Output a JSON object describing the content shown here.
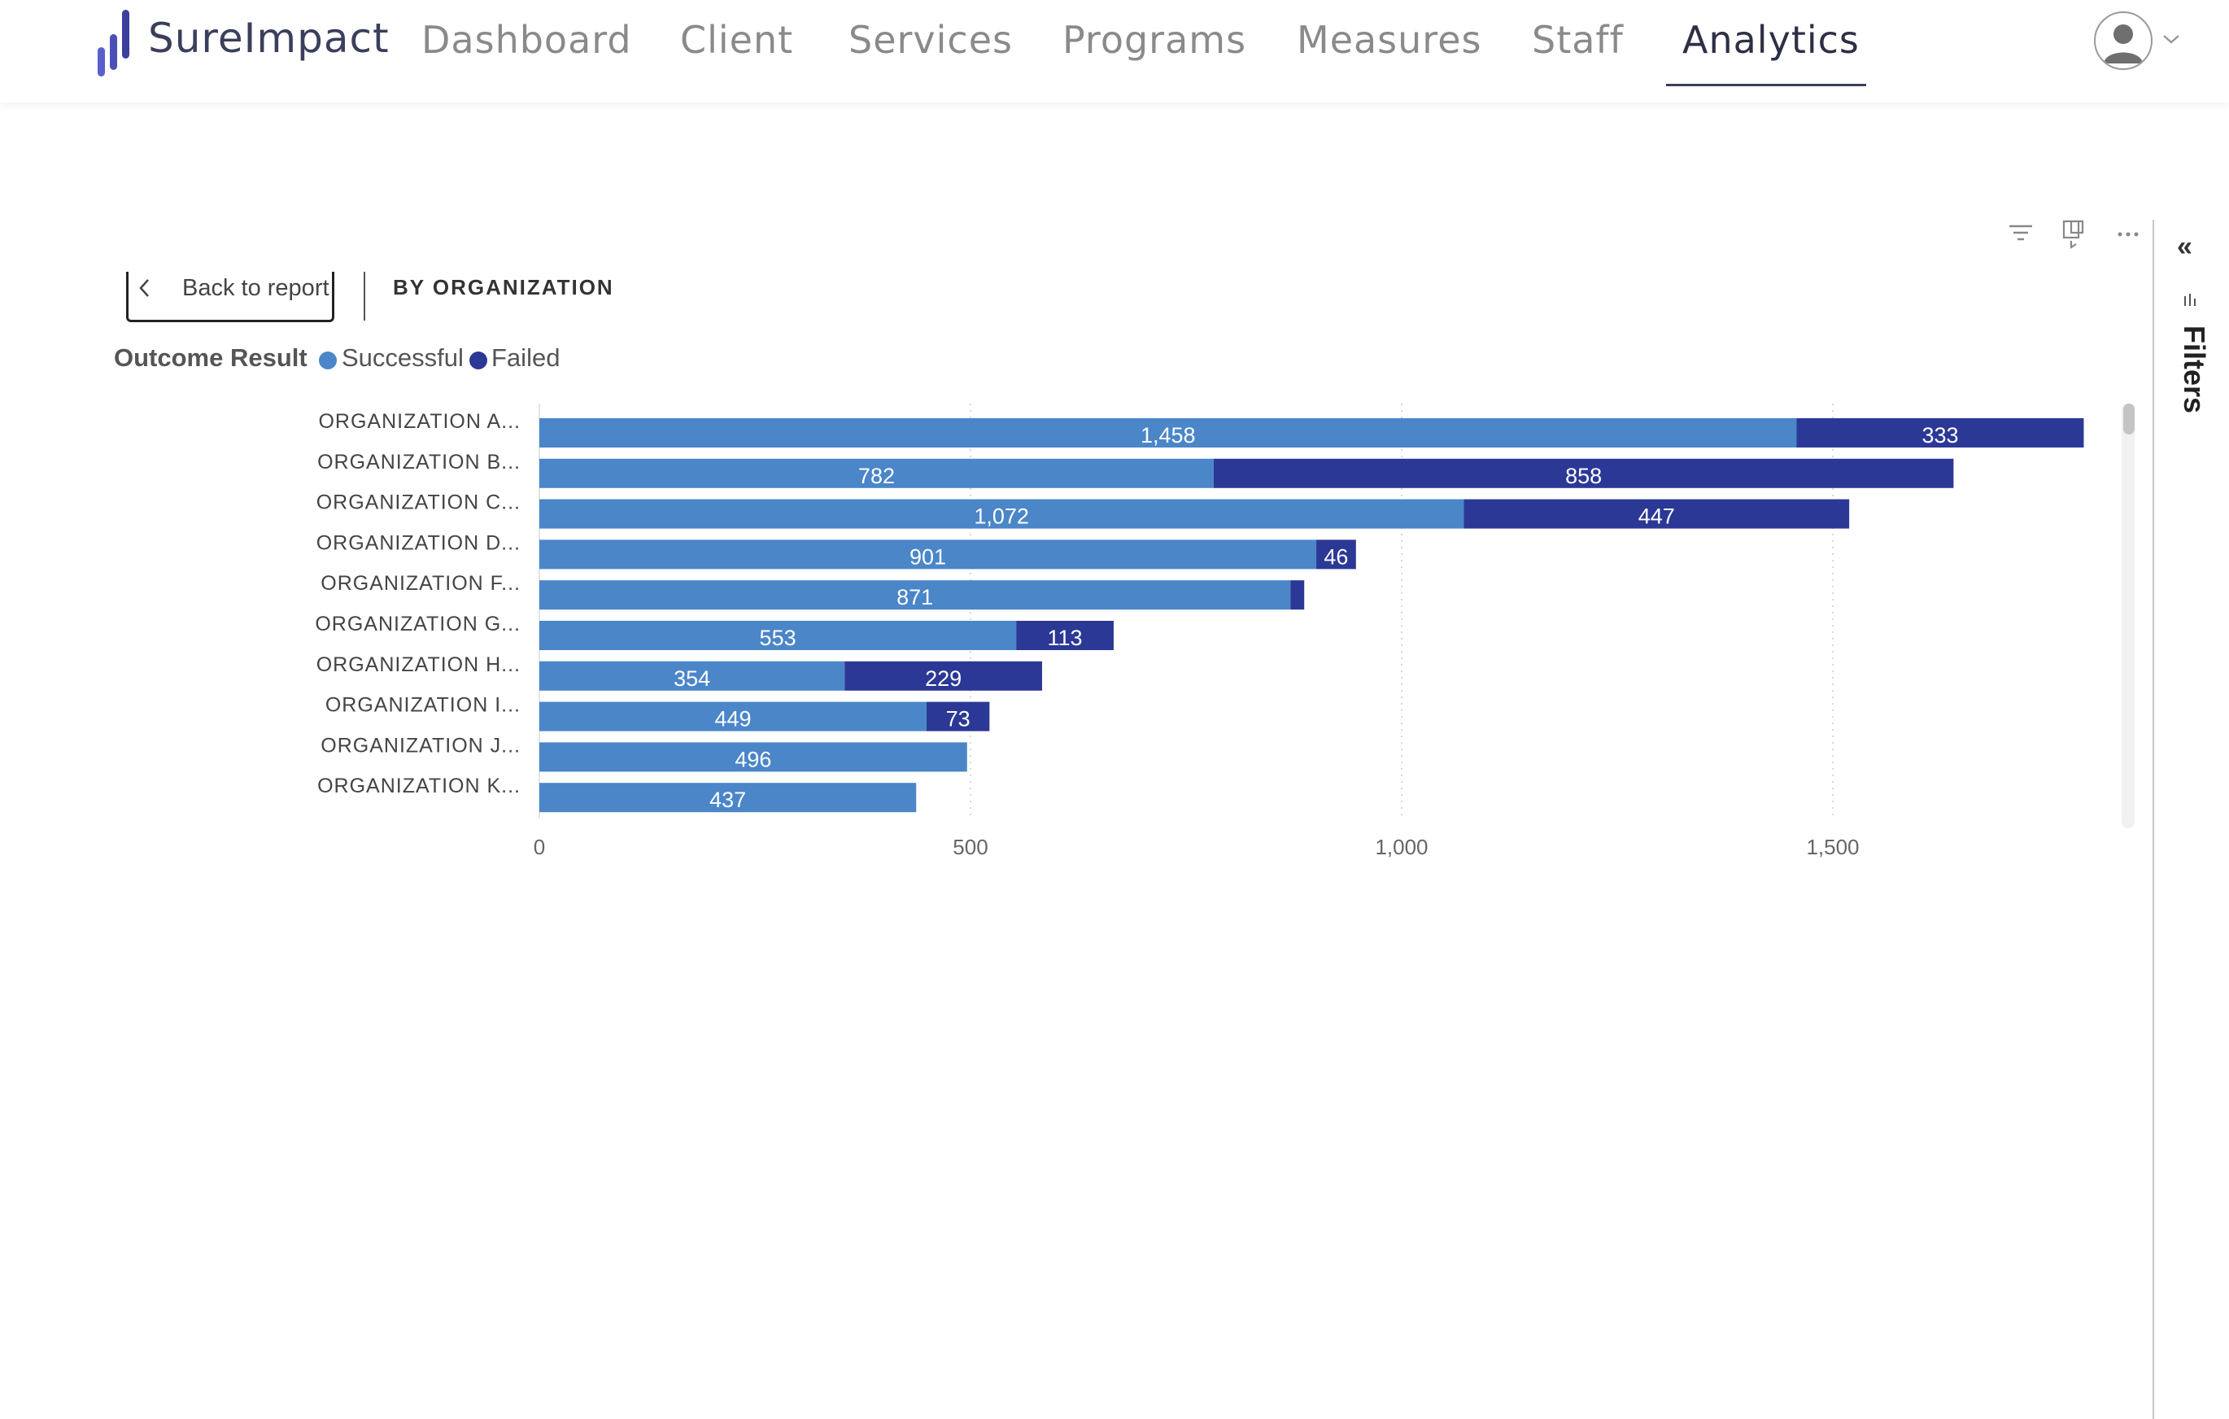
{
  "header": {
    "brand": "SureImpact",
    "nav": [
      {
        "label": "Dashboard",
        "active": false
      },
      {
        "label": "Client",
        "active": false
      },
      {
        "label": "Services",
        "active": false
      },
      {
        "label": "Programs",
        "active": false
      },
      {
        "label": "Measures",
        "active": false
      },
      {
        "label": "Staff",
        "active": false
      },
      {
        "label": "Analytics",
        "active": true
      }
    ],
    "avatar_icon": "user-avatar-icon"
  },
  "toolbar": {
    "back_label": "Back to report",
    "breadcrumb": "BY ORGANIZATION",
    "icons": [
      "filter-icon",
      "focus-mode-icon",
      "more-options-icon"
    ]
  },
  "legend": {
    "title": "Outcome Result",
    "items": [
      {
        "label": "Successful",
        "color": "#4a86c8"
      },
      {
        "label": "Failed",
        "color": "#2b3896"
      }
    ]
  },
  "chart_data": {
    "type": "bar",
    "orientation": "horizontal",
    "stacked": true,
    "categories": [
      "ORGANIZATION A...",
      "ORGANIZATION B...",
      "ORGANIZATION C...",
      "ORGANIZATION D...",
      "ORGANIZATION F...",
      "ORGANIZATION G...",
      "ORGANIZATION H...",
      "ORGANIZATION I...",
      "ORGANIZATION J...",
      "ORGANIZATION K..."
    ],
    "series": [
      {
        "name": "Successful",
        "color": "#4a86c8",
        "values": [
          1458,
          782,
          1072,
          901,
          871,
          553,
          354,
          449,
          496,
          437
        ],
        "labels": [
          "1,458",
          "782",
          "1,072",
          "901",
          "871",
          "553",
          "354",
          "449",
          "496",
          "437"
        ]
      },
      {
        "name": "Failed",
        "color": "#2b3896",
        "values": [
          333,
          858,
          447,
          46,
          16,
          113,
          229,
          73,
          0,
          0
        ],
        "labels": [
          "333",
          "858",
          "447",
          "46",
          "",
          "113",
          "229",
          "73",
          "",
          ""
        ]
      }
    ],
    "xlim": [
      0,
      1800
    ],
    "xticks": [
      0,
      500,
      1000,
      1500
    ],
    "xtick_labels": [
      "0",
      "500",
      "1,000",
      "1,500"
    ],
    "grid": true,
    "legend": "top-left"
  },
  "filters": {
    "label": "Filters",
    "collapse_glyph": "«"
  }
}
